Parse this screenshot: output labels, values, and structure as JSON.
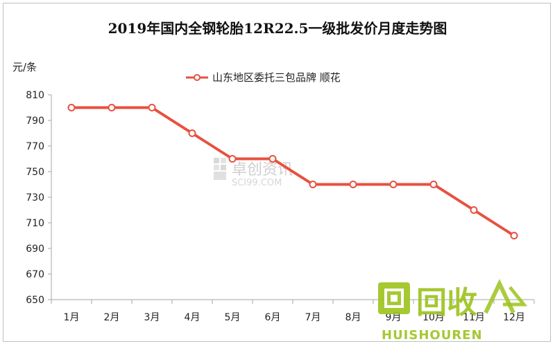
{
  "chart_data": {
    "type": "line",
    "title": "2019年国内全钢轮胎12R22.5一级批发价月度走势图",
    "ylabel": "元/条",
    "xlabel": "",
    "categories": [
      "1月",
      "2月",
      "3月",
      "4月",
      "5月",
      "6月",
      "7月",
      "8月",
      "9月",
      "10月",
      "11月",
      "12月"
    ],
    "series": [
      {
        "name": "山东地区委托三包品牌 顺花",
        "values": [
          800,
          800,
          800,
          780,
          760,
          760,
          740,
          740,
          740,
          740,
          720,
          700
        ],
        "color": "#e8503f"
      }
    ],
    "ylim": [
      650,
      810
    ],
    "yticks": [
      650,
      670,
      690,
      710,
      730,
      750,
      770,
      790,
      810
    ],
    "legend": "top-center",
    "grid": false
  },
  "watermark": {
    "text": "卓创资讯",
    "sub": "SCI99.COM"
  },
  "logo": {
    "text": "回收",
    "sub": "HUISHOUREN",
    "color": "#9cc31c"
  }
}
